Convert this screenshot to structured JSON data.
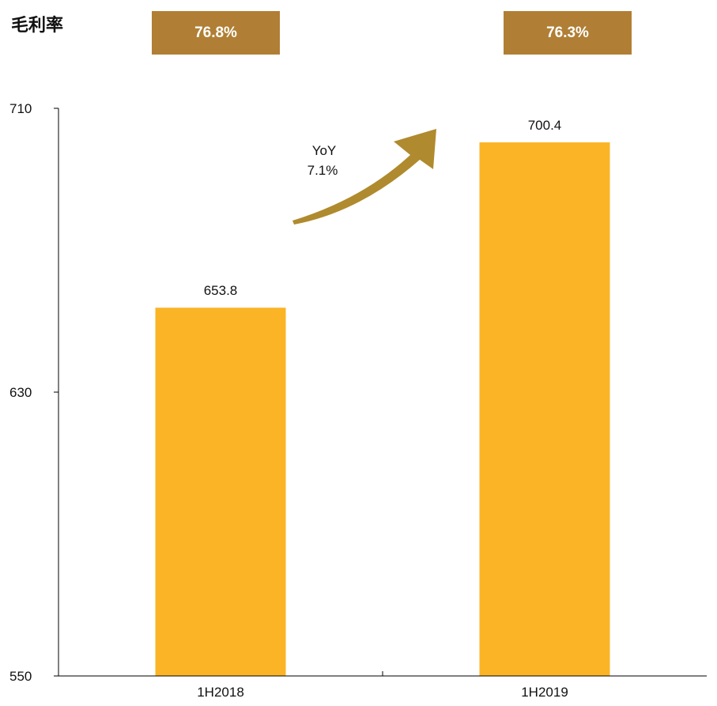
{
  "header": {
    "gross_margin_label": "毛利率",
    "gross_margin_values": [
      "76.8%",
      "76.3%"
    ]
  },
  "annotation": {
    "yoy_label": "YoY",
    "yoy_value": "7.1%"
  },
  "colors": {
    "bar": "#FBB425",
    "box": "#B07F35",
    "arrow": "#B08A2E",
    "axis": "#000000"
  },
  "chart_data": {
    "type": "bar",
    "categories": [
      "1H2018",
      "1H2019"
    ],
    "values": [
      653.8,
      700.4
    ],
    "data_labels": [
      "653.8",
      "700.4"
    ],
    "ylim": [
      550,
      710
    ],
    "yticks": [
      550,
      630,
      710
    ],
    "grid": false,
    "legend": "none"
  }
}
